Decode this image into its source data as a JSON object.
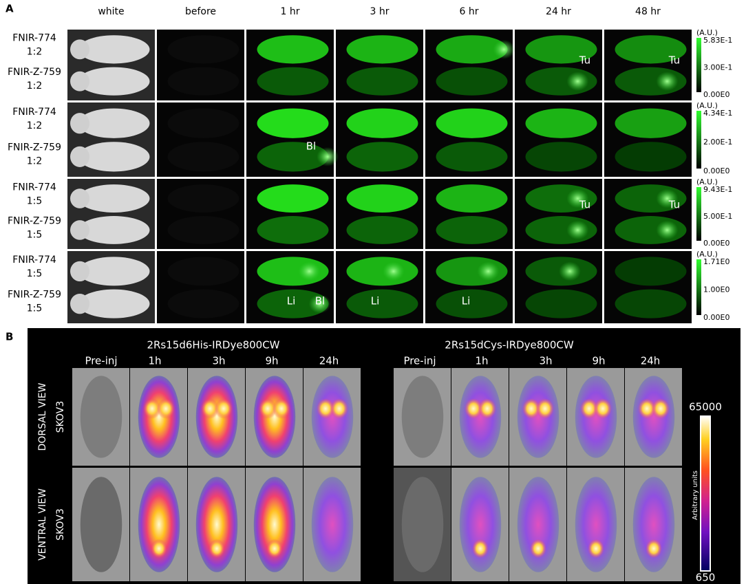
{
  "panel_a": {
    "label": "A",
    "columns": [
      "white",
      "before",
      "1 hr",
      "3 hr",
      "6 hr",
      "24 hr",
      "48 hr"
    ],
    "groups": [
      {
        "rows": [
          {
            "name": "FNIR-774",
            "ratio": "1:2"
          },
          {
            "name": "FNIR-Z-759",
            "ratio": "1:2"
          }
        ],
        "colorbar": {
          "unit": "(A.U.)",
          "max": "5.83E-1",
          "mid": "3.00E-1",
          "min": "0.00E0"
        },
        "annotations": [
          "Tu",
          "Tu"
        ]
      },
      {
        "rows": [
          {
            "name": "FNIR-774",
            "ratio": "1:2"
          },
          {
            "name": "FNIR-Z-759",
            "ratio": "1:2"
          }
        ],
        "colorbar": {
          "unit": "(A.U.)",
          "max": "4.34E-1",
          "mid": "2.00E-1",
          "min": "0.00E0"
        },
        "annotations": [
          "Bl"
        ]
      },
      {
        "rows": [
          {
            "name": "FNIR-774",
            "ratio": "1:5"
          },
          {
            "name": "FNIR-Z-759",
            "ratio": "1:5"
          }
        ],
        "colorbar": {
          "unit": "(A.U.)",
          "max": "9.43E-1",
          "mid": "5.00E-1",
          "min": "0.00E0"
        },
        "annotations": [
          "Tu",
          "Tu"
        ]
      },
      {
        "rows": [
          {
            "name": "FNIR-774",
            "ratio": "1:5"
          },
          {
            "name": "FNIR-Z-759",
            "ratio": "1:5"
          }
        ],
        "colorbar": {
          "unit": "(A.U.)",
          "max": "1.71E0",
          "mid": "1.00E0",
          "min": "0.00E0"
        },
        "annotations": [
          "Li",
          "Bl",
          "Li",
          "Li"
        ]
      }
    ]
  },
  "panel_b": {
    "label": "B",
    "blocks": [
      {
        "title": "2Rs15d6His-IRDye800CW",
        "columns": [
          "Pre-inj",
          "1h",
          "3h",
          "9h",
          "24h"
        ]
      },
      {
        "title": "2Rs15dCys-IRDye800CW",
        "columns": [
          "Pre-inj",
          "1h",
          "3h",
          "9h",
          "24h"
        ]
      }
    ],
    "rows": [
      {
        "view": "DORSAL   VIEW",
        "model": "SKOV3"
      },
      {
        "view": "VENTRAL   VIEW",
        "model": "SKOV3"
      }
    ],
    "colorbar": {
      "max": "65000",
      "min": "650",
      "label": "Arbitrary units"
    }
  }
}
